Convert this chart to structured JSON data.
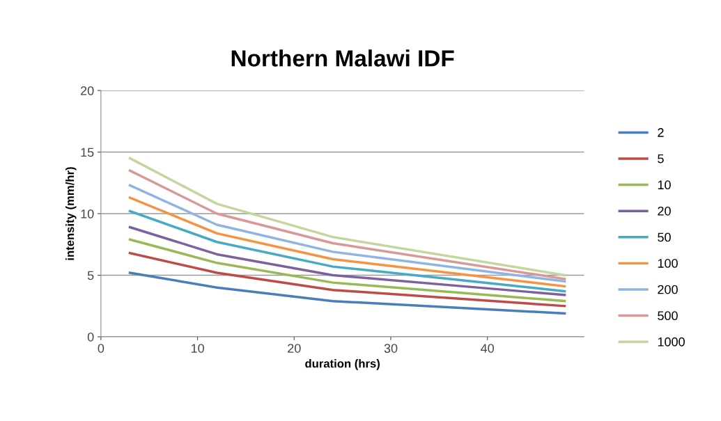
{
  "chart_data": {
    "type": "line",
    "title": "Northern Malawi IDF",
    "xlabel": "duration (hrs)",
    "ylabel": "intensity (mm/hr)",
    "x": [
      3,
      12,
      24,
      48
    ],
    "series": [
      {
        "name": "2",
        "color": "#4a7ebb",
        "values": [
          5.2,
          4.0,
          2.9,
          1.9
        ]
      },
      {
        "name": "5",
        "color": "#be4b48",
        "values": [
          6.8,
          5.2,
          3.8,
          2.5
        ]
      },
      {
        "name": "10",
        "color": "#98b954",
        "values": [
          7.9,
          6.0,
          4.4,
          2.9
        ]
      },
      {
        "name": "20",
        "color": "#7d60a0",
        "values": [
          8.9,
          6.7,
          5.0,
          3.4
        ]
      },
      {
        "name": "50",
        "color": "#46aac5",
        "values": [
          10.2,
          7.7,
          5.7,
          3.7
        ]
      },
      {
        "name": "100",
        "color": "#f69240",
        "values": [
          11.3,
          8.4,
          6.3,
          4.1
        ]
      },
      {
        "name": "200",
        "color": "#8eb4e3",
        "values": [
          12.3,
          9.1,
          6.9,
          4.5
        ]
      },
      {
        "name": "500",
        "color": "#d99795",
        "values": [
          13.5,
          10.0,
          7.6,
          4.7
        ]
      },
      {
        "name": "1000",
        "color": "#c3d69b",
        "values": [
          14.5,
          10.8,
          8.1,
          5.0
        ]
      }
    ],
    "xlim": [
      0,
      50
    ],
    "xticks": [
      0,
      10,
      20,
      30,
      40
    ],
    "ylim": [
      0,
      20
    ],
    "yticks": [
      0,
      5,
      10,
      15,
      20
    ],
    "grid": "y",
    "legend": "right",
    "marker": "none",
    "line_style": "solid"
  }
}
